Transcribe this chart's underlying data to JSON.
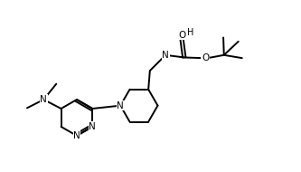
{
  "bg": "#ffffff",
  "lc": "black",
  "lw": 1.4,
  "fs": 7.5,
  "xlim": [
    0,
    10
  ],
  "ylim": [
    0,
    5.7
  ]
}
